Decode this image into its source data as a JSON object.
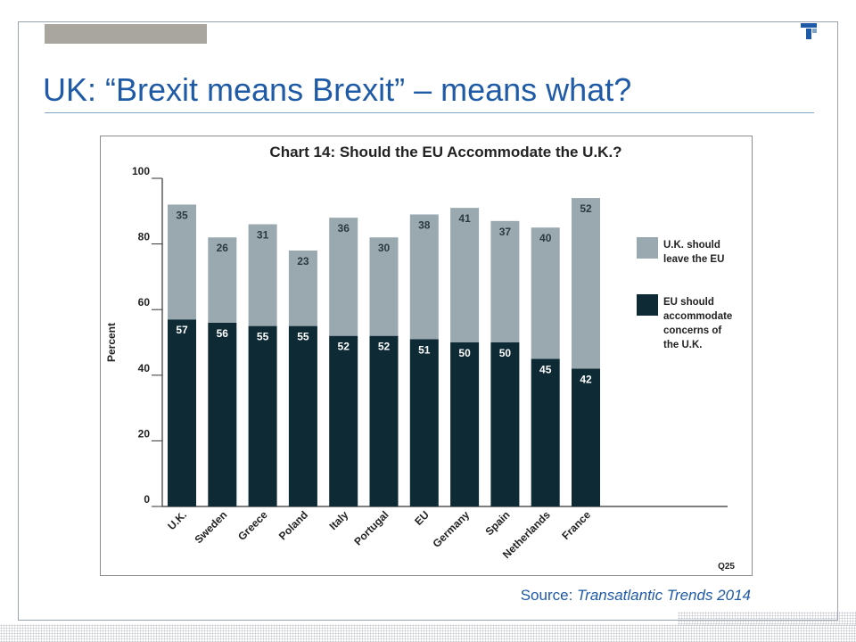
{
  "slide": {
    "title": "UK: “Brexit means Brexit” – means what?",
    "source_prefix": "Source: ",
    "source_italic": "Transatlantic Trends 2014"
  },
  "colors": {
    "accent": "#1f5aa6",
    "leave": "#9aa8b0",
    "accommodate": "#0d2a35"
  },
  "chart_data": {
    "type": "bar",
    "stacked": true,
    "title": "Chart 14: Should the EU Accommodate the U.K.?",
    "ylabel": "Percent",
    "xlabel": "",
    "ylim": [
      0,
      100
    ],
    "yticks": [
      "0",
      "20",
      "40",
      "60",
      "80",
      "100"
    ],
    "categories": [
      "U.K.",
      "Sweden",
      "Greece",
      "Poland",
      "Italy",
      "Portugal",
      "EU",
      "Germany",
      "Spain",
      "Netherlands",
      "France"
    ],
    "series": [
      {
        "name": "EU should accommodate concerns of the U.K.",
        "color": "#0d2a35",
        "values": [
          57,
          56,
          55,
          55,
          52,
          52,
          51,
          50,
          50,
          45,
          42
        ]
      },
      {
        "name": "U.K. should leave the EU",
        "color": "#9aa8b0",
        "values": [
          35,
          26,
          31,
          23,
          36,
          30,
          38,
          41,
          37,
          40,
          52
        ]
      }
    ],
    "legend": [
      {
        "lines": [
          "U.K. should",
          "leave the EU"
        ],
        "color": "#9aa8b0"
      },
      {
        "lines": [
          "EU should",
          "accommodate",
          "concerns of",
          "the U.K."
        ],
        "color": "#0d2a35"
      }
    ],
    "note": "Q25",
    "legend_position": "right",
    "grid": false
  }
}
